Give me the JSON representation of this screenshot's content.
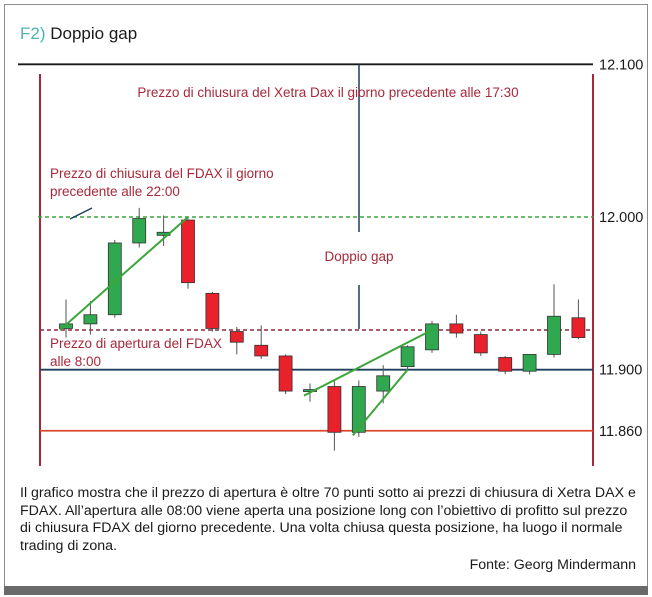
{
  "figure": {
    "title_prefix": "F2)",
    "title": "Doppio gap",
    "caption": "Il grafico mostra che il prezzo di apertura è oltre 70 punti sotto ai prezzi di chiusura di Xetra DAX e FDAX. All’apertura alle 08:00 viene aperta una posizione long con l’obiettivo di profitto sul prezzo di chiusura FDAX del giorno precedente. Una volta chiusa questa posizione, ha luogo il normale trading di zona.",
    "source": "Fonte: Georg Mindermann"
  },
  "chart_data": {
    "type": "candlestick",
    "y_ticks": [
      {
        "value": 12100,
        "label": "12.100"
      },
      {
        "value": 12000,
        "label": "12.000"
      },
      {
        "value": 11900,
        "label": "11.900"
      },
      {
        "value": 11860,
        "label": "11.860"
      }
    ],
    "levels": [
      {
        "name": "xetra-close",
        "value": 12100,
        "style": "solid",
        "color": "#1a1a1a",
        "label": "Prezzo di chiusura del Xetra Dax il giorno precedente alle 17:30"
      },
      {
        "name": "fdax-close",
        "value": 12000,
        "style": "dashed",
        "color": "#3aa63a",
        "label": "Prezzo di chiusura del FDAX il giorno precedente alle 22:00"
      },
      {
        "name": "fdax-open",
        "value": 11926,
        "style": "dashed",
        "color": "#8b2a3a",
        "label": "Prezzo di apertura del FDAX alle 8:00"
      },
      {
        "name": "support-11900",
        "value": 11900,
        "style": "solid",
        "color": "#1f3f5c",
        "label": ""
      },
      {
        "name": "support-11860",
        "value": 11860,
        "style": "solid",
        "color": "#d94a2a",
        "label": ""
      }
    ],
    "gap_annotation": "Doppio gap",
    "candles": [
      {
        "o": 11927,
        "h": 11946,
        "l": 11921,
        "c": 11930,
        "dir": "up"
      },
      {
        "o": 11930,
        "h": 11945,
        "l": 11923,
        "c": 11936,
        "dir": "up"
      },
      {
        "o": 11936,
        "h": 11985,
        "l": 11934,
        "c": 11983,
        "dir": "up"
      },
      {
        "o": 11983,
        "h": 12006,
        "l": 11980,
        "c": 11999,
        "dir": "up"
      },
      {
        "o": 11988,
        "h": 12001,
        "l": 11981,
        "c": 11990,
        "dir": "up"
      },
      {
        "o": 11998,
        "h": 11999,
        "l": 11953,
        "c": 11957,
        "dir": "down"
      },
      {
        "o": 11950,
        "h": 11951,
        "l": 11925,
        "c": 11927,
        "dir": "down"
      },
      {
        "o": 11925,
        "h": 11928,
        "l": 11910,
        "c": 11918,
        "dir": "down"
      },
      {
        "o": 11916,
        "h": 11929,
        "l": 11907,
        "c": 11909,
        "dir": "down"
      },
      {
        "o": 11909,
        "h": 11910,
        "l": 11884,
        "c": 11886,
        "dir": "down"
      },
      {
        "o": 11886,
        "h": 11891,
        "l": 11879,
        "c": 11887,
        "dir": "up"
      },
      {
        "o": 11889,
        "h": 11893,
        "l": 11847,
        "c": 11859,
        "dir": "down"
      },
      {
        "o": 11859,
        "h": 11893,
        "l": 11856,
        "c": 11889,
        "dir": "up"
      },
      {
        "o": 11886,
        "h": 11903,
        "l": 11878,
        "c": 11896,
        "dir": "up"
      },
      {
        "o": 11902,
        "h": 11916,
        "l": 11900,
        "c": 11915,
        "dir": "up"
      },
      {
        "o": 11913,
        "h": 11932,
        "l": 11911,
        "c": 11930,
        "dir": "up"
      },
      {
        "o": 11930,
        "h": 11936,
        "l": 11921,
        "c": 11924,
        "dir": "down"
      },
      {
        "o": 11923,
        "h": 11925,
        "l": 11909,
        "c": 11911,
        "dir": "down"
      },
      {
        "o": 11908,
        "h": 11909,
        "l": 11897,
        "c": 11899,
        "dir": "down"
      },
      {
        "o": 11899,
        "h": 11910,
        "l": 11897,
        "c": 11910,
        "dir": "up"
      },
      {
        "o": 11910,
        "h": 11956,
        "l": 11908,
        "c": 11935,
        "dir": "up"
      },
      {
        "o": 11934,
        "h": 11946,
        "l": 11920,
        "c": 11921,
        "dir": "down"
      }
    ],
    "trend_lines": [
      {
        "from_index": 0,
        "from_value": 11926,
        "to_index": 5,
        "to_value": 12000
      },
      {
        "from_index": 10,
        "from_value": 11883,
        "to_index": 15,
        "to_value": 11926
      },
      {
        "from_index": 12,
        "from_value": 11857,
        "to_index": 14,
        "to_value": 11900
      }
    ],
    "colors": {
      "up": "#2fa84f",
      "down": "#e8212b",
      "frame": "#a8283a",
      "trend": "#3aa63a"
    }
  }
}
